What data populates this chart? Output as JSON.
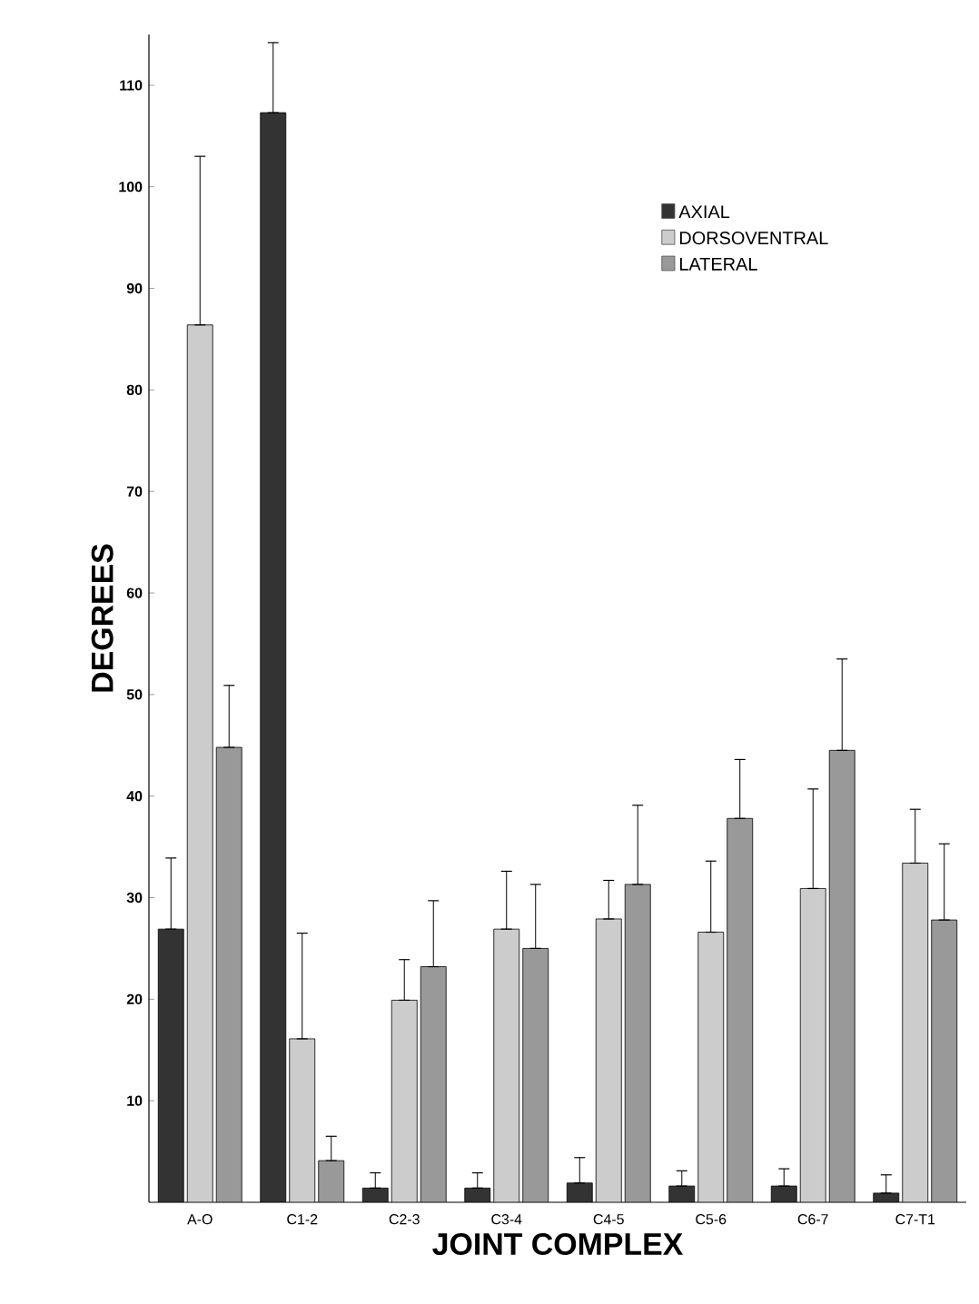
{
  "chart_data": {
    "type": "bar",
    "xlabel": "JOINT COMPLEX",
    "ylabel": "DEGREES",
    "categories": [
      "A-O",
      "C1-2",
      "C2-3",
      "C3-4",
      "C4-5",
      "C5-6",
      "C6-7",
      "C7-T1"
    ],
    "series": [
      {
        "name": "AXIAL",
        "color": "#333333",
        "values": [
          26.9,
          107.3,
          1.4,
          1.4,
          1.9,
          1.6,
          1.6,
          0.9
        ],
        "errors": [
          [
            26.9,
            33.9
          ],
          [
            107.3,
            114.2
          ],
          [
            1.4,
            2.9
          ],
          [
            1.4,
            2.9
          ],
          [
            1.9,
            4.4
          ],
          [
            1.6,
            3.1
          ],
          [
            1.6,
            3.3
          ],
          [
            0.9,
            2.7
          ]
        ]
      },
      {
        "name": "DORSOVENTRAL",
        "color": "#cccccc",
        "values": [
          86.4,
          16.1,
          19.9,
          26.9,
          27.9,
          26.6,
          30.9,
          33.4
        ],
        "errors": [
          [
            86.4,
            103
          ],
          [
            16.1,
            26.5
          ],
          [
            19.9,
            23.9
          ],
          [
            26.9,
            32.6
          ],
          [
            27.9,
            31.7
          ],
          [
            26.6,
            33.6
          ],
          [
            30.9,
            40.7
          ],
          [
            33.4,
            38.7
          ]
        ]
      },
      {
        "name": "LATERAL",
        "color": "#999999",
        "values": [
          44.8,
          4.1,
          23.2,
          25.0,
          31.3,
          37.8,
          44.5,
          27.8
        ],
        "errors": [
          [
            44.8,
            50.9
          ],
          [
            4.1,
            6.5
          ],
          [
            23.2,
            29.7
          ],
          [
            25.0,
            31.3
          ],
          [
            31.3,
            39.1
          ],
          [
            37.8,
            43.6
          ],
          [
            44.5,
            53.5
          ],
          [
            27.8,
            35.3
          ]
        ]
      }
    ],
    "ylim": [
      0,
      115
    ],
    "yticks": [
      10,
      20,
      30,
      40,
      50,
      60,
      70,
      80,
      90,
      100,
      110
    ],
    "grid": false,
    "legend": "top right"
  }
}
